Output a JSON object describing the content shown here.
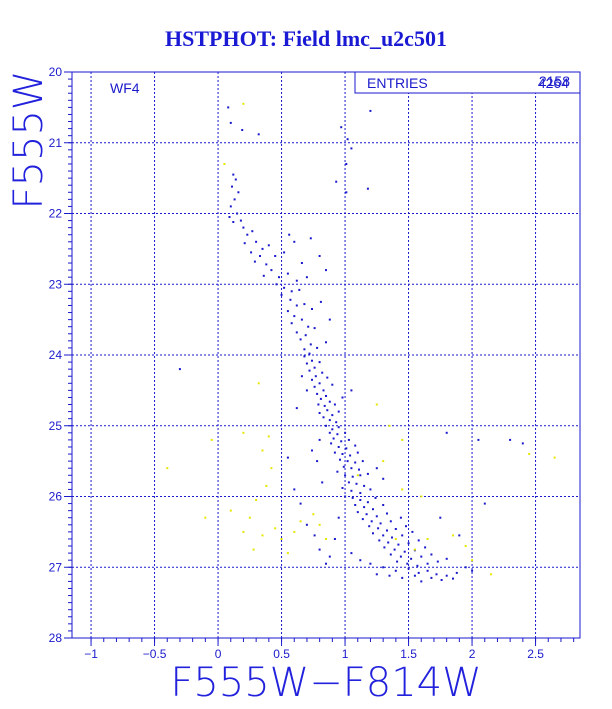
{
  "chart_data": {
    "type": "scatter",
    "title": "HSTPHOT: Field lmc_u2c501",
    "xlabel": "F555W−F814W",
    "ylabel": "F555W",
    "xlim": [
      -1.15,
      2.85
    ],
    "ylim": [
      28,
      20
    ],
    "y_inverted": true,
    "x_ticks": [
      "-1",
      "-0.5",
      "0",
      "0.5",
      "1",
      "1.5",
      "2",
      "2.5"
    ],
    "y_ticks": [
      "20",
      "21",
      "22",
      "23",
      "24",
      "25",
      "26",
      "27",
      "28"
    ],
    "grid": true,
    "panel_label": "WF4",
    "stats_box": {
      "label": "ENTRIES",
      "value": "2158",
      "value_overstrike": "4264"
    },
    "colors": {
      "primary": "#1a1acc",
      "secondary": "#e6e600",
      "background": "#ffffff"
    },
    "series": [
      {
        "color": "#1a1acc",
        "points": [
          [
            0.08,
            20.5
          ],
          [
            0.1,
            20.72
          ],
          [
            0.19,
            20.82
          ],
          [
            0.32,
            20.88
          ],
          [
            0.97,
            20.78
          ],
          [
            1.02,
            20.95
          ],
          [
            1.05,
            21.08
          ],
          [
            1.01,
            21.3
          ],
          [
            0.93,
            21.55
          ],
          [
            1.18,
            21.65
          ],
          [
            1.01,
            21.7
          ],
          [
            1.2,
            20.55
          ],
          [
            0.12,
            21.45
          ],
          [
            0.14,
            21.52
          ],
          [
            0.11,
            21.62
          ],
          [
            0.16,
            21.7
          ],
          [
            0.13,
            21.8
          ],
          [
            0.1,
            21.9
          ],
          [
            0.15,
            22.0
          ],
          [
            0.09,
            22.05
          ],
          [
            0.18,
            22.1
          ],
          [
            0.12,
            22.12
          ],
          [
            0.2,
            22.2
          ],
          [
            0.23,
            22.3
          ],
          [
            0.27,
            22.25
          ],
          [
            0.3,
            22.4
          ],
          [
            0.21,
            22.42
          ],
          [
            0.35,
            22.5
          ],
          [
            0.26,
            22.55
          ],
          [
            0.4,
            22.45
          ],
          [
            0.33,
            22.6
          ],
          [
            0.29,
            22.68
          ],
          [
            0.38,
            22.72
          ],
          [
            0.45,
            22.6
          ],
          [
            0.52,
            22.55
          ],
          [
            0.6,
            22.4
          ],
          [
            0.42,
            22.8
          ],
          [
            0.36,
            22.88
          ],
          [
            0.48,
            22.9
          ],
          [
            0.55,
            22.85
          ],
          [
            0.62,
            22.95
          ],
          [
            0.7,
            22.9
          ],
          [
            0.66,
            22.7
          ],
          [
            0.56,
            22.3
          ],
          [
            0.73,
            22.35
          ],
          [
            0.8,
            22.6
          ],
          [
            0.85,
            22.8
          ],
          [
            0.46,
            23.0
          ],
          [
            0.52,
            23.05
          ],
          [
            0.58,
            23.1
          ],
          [
            0.64,
            23.08
          ],
          [
            0.5,
            23.15
          ],
          [
            0.57,
            23.22
          ],
          [
            0.62,
            23.3
          ],
          [
            0.55,
            23.38
          ],
          [
            0.68,
            23.28
          ],
          [
            0.74,
            23.35
          ],
          [
            0.81,
            23.25
          ],
          [
            0.6,
            23.45
          ],
          [
            0.66,
            23.5
          ],
          [
            0.58,
            23.55
          ],
          [
            0.71,
            23.6
          ],
          [
            0.62,
            23.68
          ],
          [
            0.69,
            23.72
          ],
          [
            0.76,
            23.62
          ],
          [
            0.88,
            23.5
          ],
          [
            0.65,
            23.78
          ],
          [
            0.73,
            23.85
          ],
          [
            0.68,
            23.92
          ],
          [
            0.78,
            23.9
          ],
          [
            0.72,
            23.98
          ],
          [
            0.85,
            23.82
          ],
          [
            0.68,
            24.02
          ],
          [
            0.74,
            24.08
          ],
          [
            0.7,
            24.12
          ],
          [
            0.8,
            24.1
          ],
          [
            0.76,
            24.18
          ],
          [
            0.72,
            24.22
          ],
          [
            0.82,
            24.25
          ],
          [
            0.77,
            24.3
          ],
          [
            0.74,
            24.35
          ],
          [
            0.86,
            24.32
          ],
          [
            0.8,
            24.4
          ],
          [
            0.76,
            24.45
          ],
          [
            0.83,
            24.5
          ],
          [
            0.9,
            24.42
          ],
          [
            0.78,
            24.55
          ],
          [
            0.85,
            24.58
          ],
          [
            0.81,
            24.62
          ],
          [
            0.88,
            24.66
          ],
          [
            0.79,
            24.7
          ],
          [
            0.84,
            24.72
          ],
          [
            0.92,
            24.7
          ],
          [
            0.86,
            24.78
          ],
          [
            0.8,
            24.82
          ],
          [
            0.9,
            24.85
          ],
          [
            0.95,
            24.8
          ],
          [
            0.83,
            24.88
          ],
          [
            0.88,
            24.92
          ],
          [
            0.93,
            24.95
          ],
          [
            0.7,
            24.5
          ],
          [
            0.66,
            24.3
          ],
          [
            0.98,
            24.6
          ],
          [
            1.05,
            24.5
          ],
          [
            0.62,
            24.75
          ],
          [
            0.85,
            25.0
          ],
          [
            0.9,
            25.05
          ],
          [
            0.95,
            25.02
          ],
          [
            0.88,
            25.1
          ],
          [
            0.94,
            25.12
          ],
          [
            1.0,
            25.1
          ],
          [
            0.91,
            25.18
          ],
          [
            0.97,
            25.22
          ],
          [
            1.03,
            25.2
          ],
          [
            0.89,
            25.25
          ],
          [
            0.95,
            25.3
          ],
          [
            1.01,
            25.32
          ],
          [
            1.08,
            25.28
          ],
          [
            0.92,
            25.38
          ],
          [
            0.98,
            25.4
          ],
          [
            1.04,
            25.42
          ],
          [
            1.1,
            25.38
          ],
          [
            0.96,
            25.48
          ],
          [
            1.02,
            25.5
          ],
          [
            1.08,
            25.52
          ],
          [
            1.14,
            25.5
          ],
          [
            0.99,
            25.58
          ],
          [
            1.05,
            25.6
          ],
          [
            1.11,
            25.62
          ],
          [
            0.94,
            25.65
          ],
          [
            1.0,
            25.7
          ],
          [
            1.06,
            25.72
          ],
          [
            1.12,
            25.7
          ],
          [
            1.18,
            25.68
          ],
          [
            1.03,
            25.8
          ],
          [
            1.09,
            25.82
          ],
          [
            1.15,
            25.85
          ],
          [
            0.98,
            25.88
          ],
          [
            1.05,
            25.92
          ],
          [
            1.12,
            25.95
          ],
          [
            1.2,
            25.9
          ],
          [
            0.8,
            25.2
          ],
          [
            0.78,
            25.5
          ],
          [
            0.82,
            25.8
          ],
          [
            1.25,
            25.6
          ],
          [
            1.3,
            25.75
          ],
          [
            0.74,
            25.35
          ],
          [
            1.0,
            26.0
          ],
          [
            1.06,
            26.02
          ],
          [
            1.12,
            26.05
          ],
          [
            1.18,
            26.08
          ],
          [
            1.24,
            26.02
          ],
          [
            1.08,
            26.12
          ],
          [
            1.15,
            26.15
          ],
          [
            1.22,
            26.18
          ],
          [
            1.3,
            26.12
          ],
          [
            1.1,
            26.22
          ],
          [
            1.17,
            26.25
          ],
          [
            1.25,
            26.28
          ],
          [
            1.33,
            26.24
          ],
          [
            1.14,
            26.32
          ],
          [
            1.21,
            26.35
          ],
          [
            1.28,
            26.38
          ],
          [
            1.36,
            26.35
          ],
          [
            1.44,
            26.3
          ],
          [
            1.19,
            26.42
          ],
          [
            1.26,
            26.45
          ],
          [
            1.33,
            26.48
          ],
          [
            1.4,
            26.46
          ],
          [
            1.48,
            26.42
          ],
          [
            1.22,
            26.52
          ],
          [
            1.3,
            26.55
          ],
          [
            1.37,
            26.58
          ],
          [
            1.45,
            26.55
          ],
          [
            1.53,
            26.5
          ],
          [
            1.27,
            26.62
          ],
          [
            1.34,
            26.65
          ],
          [
            1.42,
            26.68
          ],
          [
            1.5,
            26.66
          ],
          [
            1.58,
            26.62
          ],
          [
            1.31,
            26.72
          ],
          [
            1.39,
            26.75
          ],
          [
            1.47,
            26.78
          ],
          [
            1.55,
            26.76
          ],
          [
            1.63,
            26.72
          ],
          [
            1.36,
            26.82
          ],
          [
            1.44,
            26.85
          ],
          [
            1.52,
            26.88
          ],
          [
            1.6,
            26.85
          ],
          [
            1.68,
            26.82
          ],
          [
            1.41,
            26.92
          ],
          [
            1.49,
            26.95
          ],
          [
            1.57,
            26.98
          ],
          [
            1.65,
            26.95
          ],
          [
            1.73,
            26.92
          ],
          [
            1.8,
            26.88
          ],
          [
            0.95,
            26.3
          ],
          [
            0.92,
            26.6
          ],
          [
            0.88,
            26.85
          ],
          [
            0.85,
            26.95
          ],
          [
            0.8,
            26.75
          ],
          [
            0.76,
            26.55
          ],
          [
            1.05,
            26.8
          ],
          [
            1.12,
            26.9
          ],
          [
            1.2,
            26.95
          ],
          [
            1.3,
            27.0
          ],
          [
            1.4,
            27.05
          ],
          [
            1.5,
            27.02
          ],
          [
            1.58,
            27.08
          ],
          [
            1.65,
            27.05
          ],
          [
            1.72,
            27.1
          ],
          [
            1.8,
            27.12
          ],
          [
            1.88,
            27.08
          ],
          [
            1.95,
            27.0
          ],
          [
            2.0,
            27.05
          ],
          [
            1.68,
            27.15
          ],
          [
            1.76,
            27.18
          ],
          [
            1.6,
            27.2
          ],
          [
            1.85,
            27.16
          ],
          [
            1.25,
            27.1
          ],
          [
            1.35,
            27.12
          ],
          [
            1.45,
            27.15
          ],
          [
            1.55,
            27.12
          ],
          [
            -0.3,
            24.2
          ],
          [
            1.8,
            25.1
          ],
          [
            2.05,
            25.2
          ],
          [
            2.3,
            25.2
          ],
          [
            2.4,
            25.25
          ],
          [
            0.55,
            25.45
          ],
          [
            0.6,
            25.9
          ],
          [
            0.65,
            26.1
          ],
          [
            0.7,
            26.4
          ],
          [
            1.75,
            26.3
          ],
          [
            1.9,
            26.55
          ],
          [
            2.1,
            26.1
          ]
        ]
      },
      {
        "color": "#e6e600",
        "points": [
          [
            0.2,
            20.45
          ],
          [
            0.05,
            21.3
          ],
          [
            0.32,
            24.4
          ],
          [
            1.25,
            24.7
          ],
          [
            1.35,
            25.0
          ],
          [
            1.45,
            25.2
          ],
          [
            0.2,
            25.1
          ],
          [
            0.4,
            25.15
          ],
          [
            -0.05,
            25.2
          ],
          [
            0.42,
            25.6
          ],
          [
            0.38,
            25.85
          ],
          [
            0.3,
            26.05
          ],
          [
            0.25,
            26.3
          ],
          [
            0.2,
            26.5
          ],
          [
            0.35,
            26.55
          ],
          [
            0.45,
            26.45
          ],
          [
            0.5,
            26.6
          ],
          [
            0.28,
            26.75
          ],
          [
            0.55,
            26.8
          ],
          [
            0.6,
            26.5
          ],
          [
            0.65,
            26.35
          ],
          [
            0.8,
            26.4
          ],
          [
            0.85,
            26.6
          ],
          [
            0.75,
            26.25
          ],
          [
            1.1,
            25.7
          ],
          [
            1.3,
            25.5
          ],
          [
            1.45,
            25.9
          ],
          [
            1.6,
            26.0
          ],
          [
            1.4,
            26.6
          ],
          [
            1.55,
            26.75
          ],
          [
            1.65,
            26.6
          ],
          [
            1.85,
            26.55
          ],
          [
            1.95,
            26.7
          ],
          [
            2.0,
            26.9
          ],
          [
            2.15,
            27.1
          ],
          [
            2.45,
            25.4
          ],
          [
            2.65,
            25.45
          ],
          [
            -0.4,
            25.6
          ],
          [
            0.35,
            25.35
          ],
          [
            0.1,
            26.2
          ],
          [
            -0.1,
            26.3
          ]
        ]
      }
    ]
  }
}
